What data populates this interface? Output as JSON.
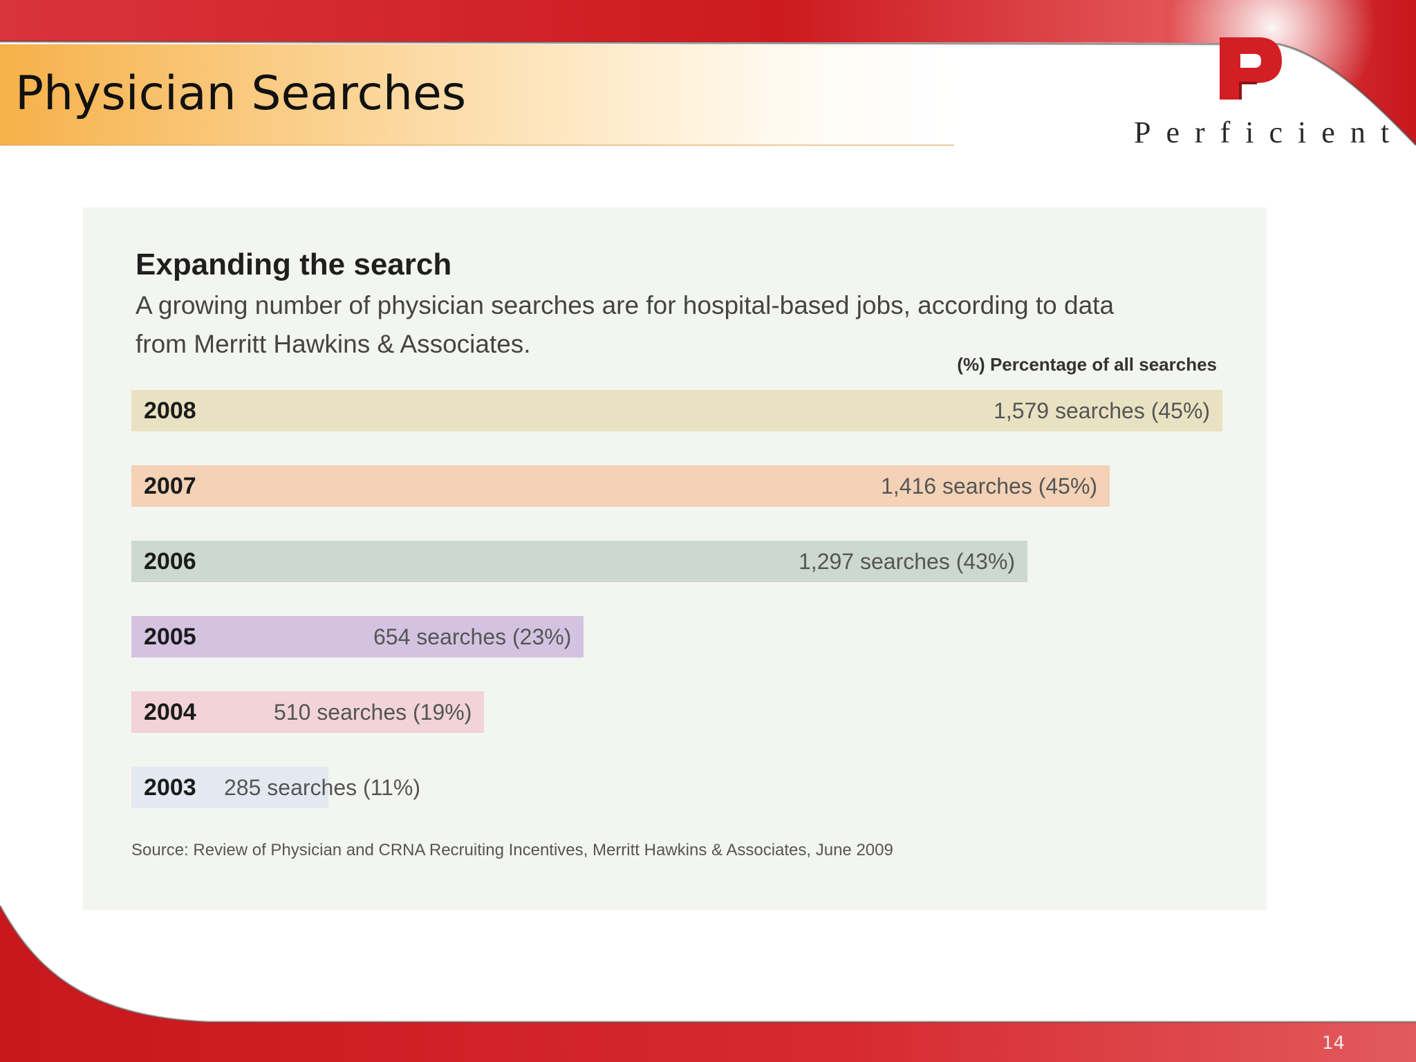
{
  "slide": {
    "title": "Physician Searches",
    "logo_text": "Perficient",
    "page_number": "14"
  },
  "colors": {
    "header_red": "#cc1f24",
    "title_band": "#f6b14a"
  },
  "chart_data": {
    "type": "bar",
    "orientation": "horizontal",
    "title": "Expanding the search",
    "subtitle": "A growing number of physician searches are for hospital-based jobs, according to data from Merritt Hawkins & Associates.",
    "percent_note": "(%) Percentage of all searches",
    "categories": [
      "2008",
      "2007",
      "2006",
      "2005",
      "2004",
      "2003"
    ],
    "values": [
      1579,
      1416,
      1297,
      654,
      510,
      285
    ],
    "percentages": [
      45,
      45,
      43,
      23,
      19,
      11
    ],
    "labels": [
      "1,579 searches (45%)",
      "1,416 searches (45%)",
      "1,297 searches (43%)",
      "654 searches (23%)",
      "510 searches (19%)",
      "285 searches (11%)"
    ],
    "colors": [
      "#e9e2c2",
      "#f3d2b6",
      "#cdd8d0",
      "#d3c3e1",
      "#f1d3d8",
      "#e4e8f1"
    ],
    "xlim": [
      0,
      1579
    ],
    "source": "Source: Review of Physician and CRNA Recruiting Incentives, Merritt Hawkins & Associates, June 2009"
  }
}
